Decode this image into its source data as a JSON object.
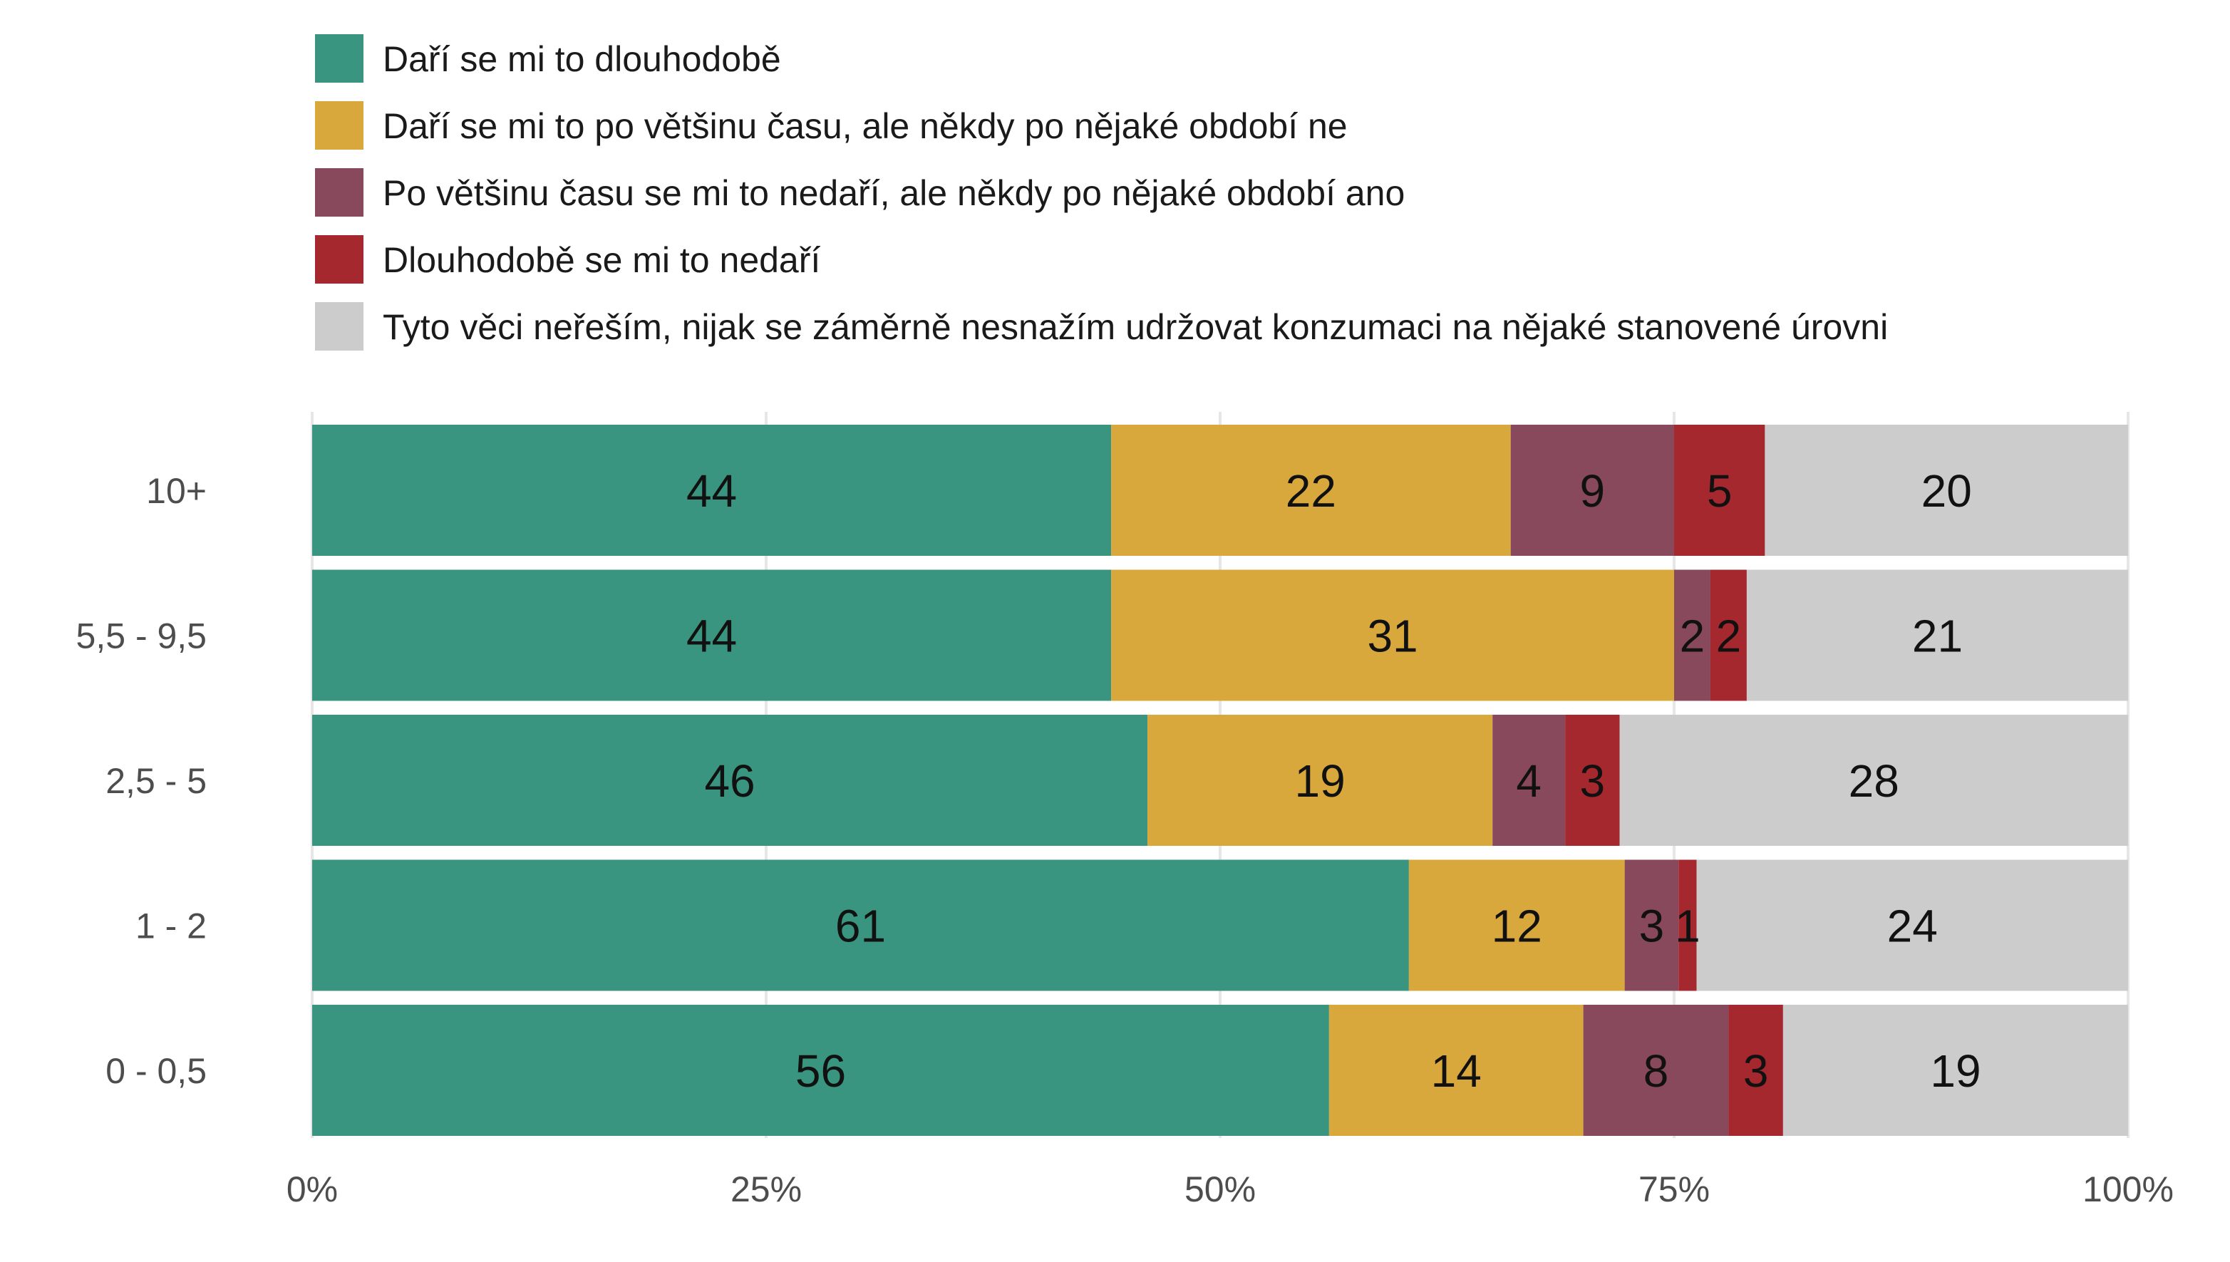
{
  "chart_data": {
    "type": "bar",
    "orientation": "horizontal-stacked-percent",
    "categories": [
      "10+",
      "5,5 - 9,5",
      "2,5 - 5",
      "1 - 2",
      "0 - 0,5"
    ],
    "xlim": [
      0,
      100
    ],
    "x_ticks": [
      "0%",
      "25%",
      "50%",
      "75%",
      "100%"
    ],
    "x_tick_values": [
      0,
      25,
      50,
      75,
      100
    ],
    "grid": true,
    "legend_position": "top",
    "series": [
      {
        "name": "Daří se mi to dlouhodobě",
        "color": "#39957f",
        "values": [
          44,
          44,
          46,
          61,
          56
        ],
        "labels": [
          "44",
          "44",
          "46",
          "61",
          "56"
        ]
      },
      {
        "name": "Daří se mi to po většinu času, ale někdy po nějaké období ne",
        "color": "#d9a83c",
        "values": [
          22,
          31,
          19,
          12,
          14
        ],
        "labels": [
          "22",
          "31",
          "19",
          "12",
          "14"
        ]
      },
      {
        "name": "Po většinu času se mi to nedaří, ale někdy po nějaké období ano",
        "color": "#87495b",
        "values": [
          9,
          2,
          4,
          3,
          8
        ],
        "labels": [
          "9",
          "2",
          "4",
          "3",
          "8"
        ]
      },
      {
        "name": "Dlouhodobě se mi to nedaří",
        "color": "#a5282f",
        "values": [
          5,
          2,
          3,
          1,
          3
        ],
        "labels": [
          "5",
          "2",
          "3",
          "1",
          "3"
        ]
      },
      {
        "name": "Tyto věci neřeším, nijak se záměrně nesnažím udržovat konzumaci na nějaké stanovené úrovni",
        "color": "#cccccc",
        "values": [
          20,
          21,
          28,
          24,
          19
        ],
        "labels": [
          "20",
          "21",
          "28",
          "24",
          "19"
        ]
      }
    ]
  }
}
